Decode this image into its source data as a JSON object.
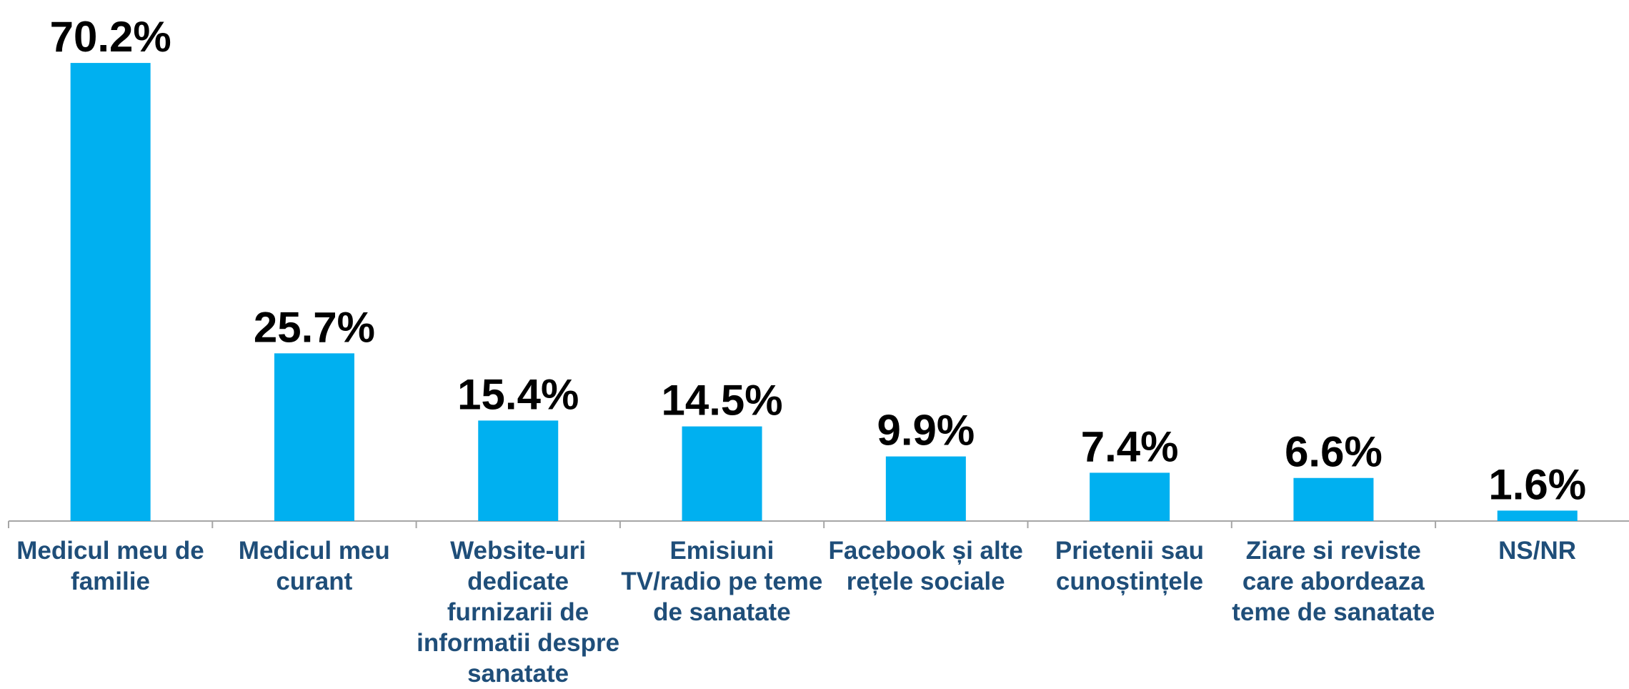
{
  "chart_data": {
    "type": "bar",
    "categories": [
      "Medicul meu de familie",
      "Medicul meu curant",
      "Website-uri dedicate furnizarii de informatii despre sanatate",
      "Emisiuni TV/radio pe teme de sanatate",
      "Facebook și alte rețele sociale",
      "Prietenii sau cunoștințele",
      "Ziare si reviste care abordeaza teme de sanatate",
      "NS/NR"
    ],
    "values": [
      70.2,
      25.7,
      15.4,
      14.5,
      9.9,
      7.4,
      6.6,
      1.6
    ],
    "value_labels": [
      "70.2%",
      "25.7%",
      "15.4%",
      "14.5%",
      "9.9%",
      "7.4%",
      "6.6%",
      "1.6%"
    ],
    "color": "#00b0f0"
  }
}
